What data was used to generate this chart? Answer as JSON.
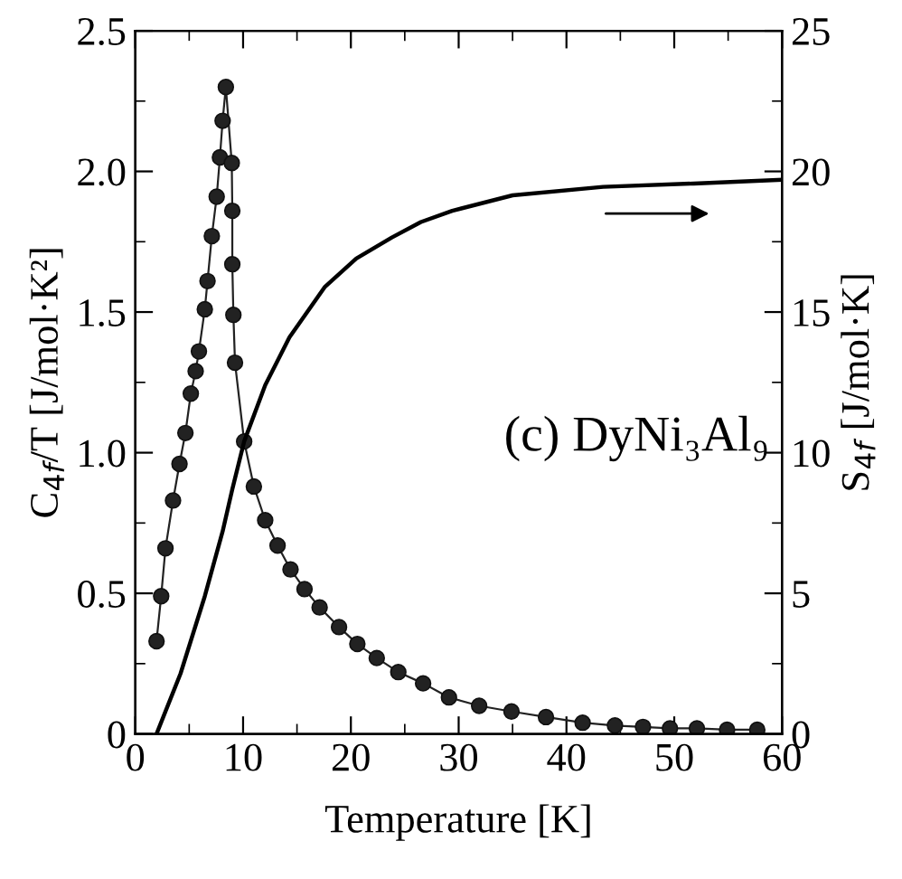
{
  "chart_data": {
    "type": "line",
    "xlabel": "Temperature [K]",
    "ylabel": "C$_{4f}$/T [J/mol·K²]",
    "y2label": "S$_{4f}$ [J/mol·K]",
    "xlim": [
      0,
      60
    ],
    "xticks": [
      0,
      10,
      20,
      30,
      40,
      50,
      60
    ],
    "ylim": [
      0,
      2.5
    ],
    "yticks": [
      {
        "value": 0,
        "label": "0"
      },
      0.5,
      {
        "value": 1,
        "label": "1.0"
      },
      1.5,
      {
        "value": 2,
        "label": "2.0"
      },
      2.5
    ],
    "y2lim": [
      0,
      25
    ],
    "y2ticks": [
      0,
      5,
      10,
      15,
      20,
      25
    ],
    "grid": false,
    "legend": false,
    "annotations": [
      "(c) DyNi₃Al₉"
    ],
    "series": [
      {
        "marker": "circle",
        "color": "#222222",
        "x": [
          1.97,
          2.4,
          2.8,
          3.5,
          4.1,
          4.65,
          5.15,
          5.6,
          5.9,
          6.45,
          6.7,
          7.1,
          7.55,
          7.85,
          8.1,
          8.4,
          8.95,
          9.0,
          9.0,
          9.1,
          9.25,
          10.1,
          11.0,
          12.05,
          13.2,
          14.4,
          15.7,
          17.1,
          18.9,
          20.6,
          22.4,
          24.4,
          26.7,
          29.1,
          31.9,
          34.9,
          38.1,
          41.5,
          44.5,
          47.1,
          49.6,
          52.1,
          54.9,
          57.7
        ],
        "values": [
          0.33,
          0.49,
          0.66,
          0.83,
          0.96,
          1.07,
          1.21,
          1.29,
          1.36,
          1.51,
          1.61,
          1.77,
          1.91,
          2.05,
          2.18,
          2.3,
          2.03,
          1.86,
          1.67,
          1.49,
          1.32,
          1.04,
          0.88,
          0.76,
          0.67,
          0.585,
          0.515,
          0.45,
          0.38,
          0.32,
          0.27,
          0.22,
          0.18,
          0.13,
          0.1,
          0.08,
          0.06,
          0.04,
          0.03,
          0.025,
          0.02,
          0.02,
          0.015,
          0.015
        ]
      },
      {
        "axis": "y2",
        "marker": "none",
        "color": "#000000",
        "x": [
          1.97,
          4.2,
          6.45,
          8.1,
          9.0,
          10.1,
          12.05,
          14.3,
          17.6,
          20.5,
          23.8,
          26.5,
          29.4,
          35.0,
          43.4,
          51.8,
          60
        ],
        "values": [
          0,
          2.15,
          4.9,
          7.2,
          8.7,
          10.4,
          12.4,
          14.1,
          15.9,
          16.9,
          17.65,
          18.2,
          18.6,
          19.15,
          19.45,
          19.57,
          19.7
        ]
      }
    ]
  }
}
